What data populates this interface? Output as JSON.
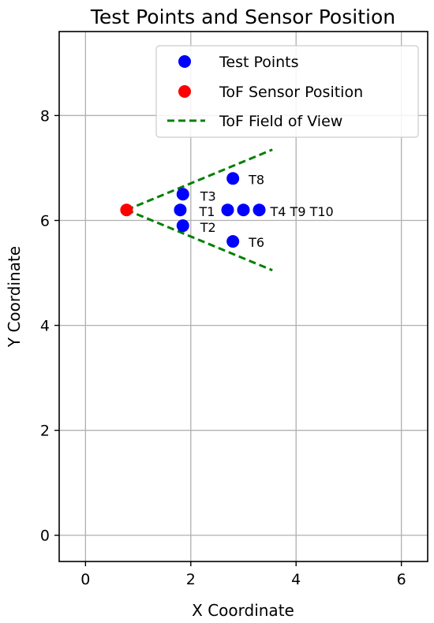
{
  "chart_data": {
    "type": "scatter",
    "title": "Test Points and Sensor Position",
    "xlabel": "X Coordinate",
    "ylabel": "Y Coordinate",
    "xlim": [
      -0.5,
      6.5
    ],
    "ylim": [
      -0.5,
      9.6
    ],
    "xticks": [
      0,
      2,
      4,
      6
    ],
    "yticks": [
      0,
      2,
      4,
      6,
      8
    ],
    "grid": true,
    "legend": {
      "placement": "top-right",
      "entries": [
        {
          "label": "Test Points",
          "marker": "circle",
          "color": "#0000ff"
        },
        {
          "label": "ToF Sensor Position",
          "marker": "circle",
          "color": "#ff0000"
        },
        {
          "label": "ToF Field of View",
          "marker": "dashed-line",
          "color": "#008000"
        }
      ]
    },
    "series": [
      {
        "name": "Test Points",
        "color": "#0000ff",
        "points": [
          {
            "x": 1.8,
            "y": 6.2,
            "label": "T1"
          },
          {
            "x": 1.85,
            "y": 5.9,
            "label": "T2"
          },
          {
            "x": 1.85,
            "y": 6.5,
            "label": "T3"
          },
          {
            "x": 2.7,
            "y": 6.2,
            "label": "T4"
          },
          {
            "x": 2.8,
            "y": 5.6,
            "label": "T6"
          },
          {
            "x": 2.8,
            "y": 6.8,
            "label": "T8"
          },
          {
            "x": 3.0,
            "y": 6.2,
            "label": "T9"
          },
          {
            "x": 3.3,
            "y": 6.2,
            "label": "T10"
          }
        ]
      },
      {
        "name": "ToF Sensor Position",
        "color": "#ff0000",
        "points": [
          {
            "x": 0.78,
            "y": 6.2
          }
        ]
      },
      {
        "name": "ToF Field of View",
        "color": "#008000",
        "style": "dashed",
        "lines": [
          [
            {
              "x": 0.78,
              "y": 6.2
            },
            {
              "x": 3.55,
              "y": 7.35
            }
          ],
          [
            {
              "x": 0.78,
              "y": 6.2
            },
            {
              "x": 3.55,
              "y": 5.05
            }
          ]
        ]
      }
    ],
    "point_label_text": "T4 T9 T10"
  }
}
